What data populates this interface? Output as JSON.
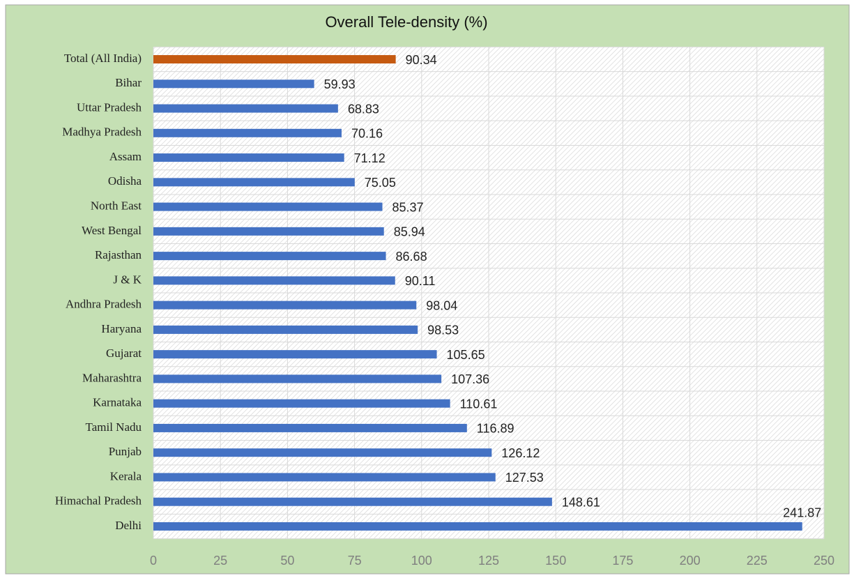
{
  "chart_data": {
    "type": "bar",
    "orientation": "horizontal",
    "title": "Overall Tele-density (%)",
    "categories": [
      "Total (All India)",
      "Bihar",
      "Uttar Pradesh",
      "Madhya Pradesh",
      "Assam",
      "Odisha",
      "North East",
      "West Bengal",
      "Rajasthan",
      "J & K",
      "Andhra Pradesh",
      "Haryana",
      "Gujarat",
      "Maharashtra",
      "Karnataka",
      "Tamil Nadu",
      "Punjab",
      "Kerala",
      "Himachal Pradesh",
      "Delhi"
    ],
    "values": [
      90.34,
      59.93,
      68.83,
      70.16,
      71.12,
      75.05,
      85.37,
      85.94,
      86.68,
      90.11,
      98.04,
      98.53,
      105.65,
      107.36,
      110.61,
      116.89,
      126.12,
      127.53,
      148.61,
      241.87
    ],
    "colors": [
      "#c55a11",
      "#4472c4",
      "#4472c4",
      "#4472c4",
      "#4472c4",
      "#4472c4",
      "#4472c4",
      "#4472c4",
      "#4472c4",
      "#4472c4",
      "#4472c4",
      "#4472c4",
      "#4472c4",
      "#4472c4",
      "#4472c4",
      "#4472c4",
      "#4472c4",
      "#4472c4",
      "#4472c4",
      "#4472c4"
    ],
    "xlim": [
      0,
      250
    ],
    "xticks": [
      0,
      25,
      50,
      75,
      100,
      125,
      150,
      175,
      200,
      225,
      250
    ],
    "grid": true
  }
}
